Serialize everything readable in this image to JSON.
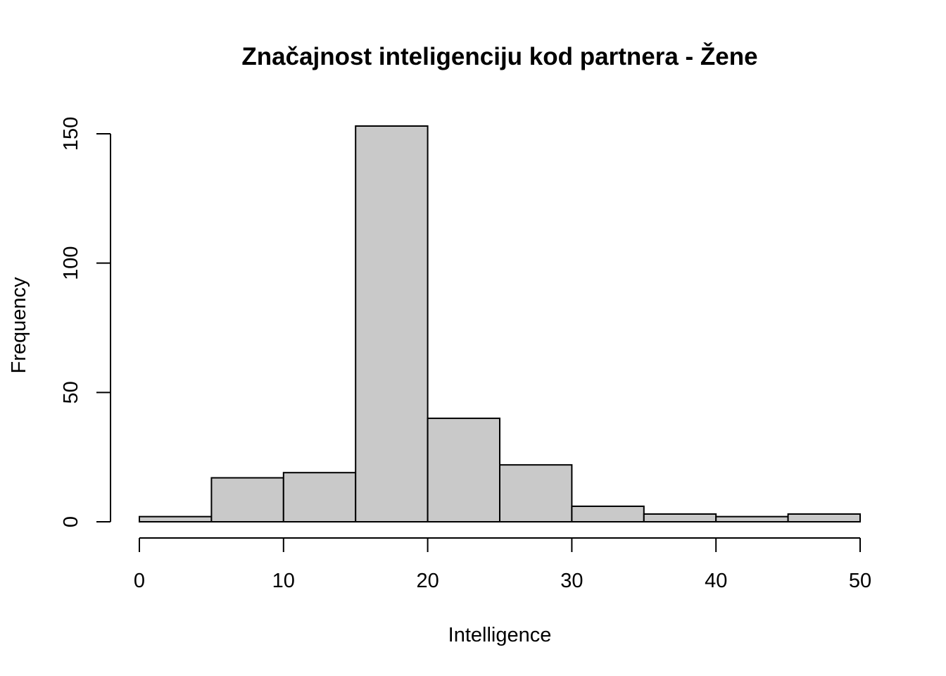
{
  "chart_data": {
    "type": "bar",
    "subtype": "histogram",
    "title": "Značajnost inteligenciju kod partnera - Žene",
    "xlabel": "Intelligence",
    "ylabel": "Frequency",
    "bins": [
      {
        "start": 0,
        "end": 5,
        "count": 2
      },
      {
        "start": 5,
        "end": 10,
        "count": 17
      },
      {
        "start": 10,
        "end": 15,
        "count": 19
      },
      {
        "start": 15,
        "end": 20,
        "count": 153
      },
      {
        "start": 20,
        "end": 25,
        "count": 40
      },
      {
        "start": 25,
        "end": 30,
        "count": 22
      },
      {
        "start": 30,
        "end": 35,
        "count": 6
      },
      {
        "start": 35,
        "end": 40,
        "count": 3
      },
      {
        "start": 40,
        "end": 45,
        "count": 2
      },
      {
        "start": 45,
        "end": 50,
        "count": 3
      }
    ],
    "xlim": [
      0,
      50
    ],
    "ylim": [
      0,
      150
    ],
    "xticks": [
      0,
      10,
      20,
      30,
      40,
      50
    ],
    "yticks": [
      0,
      50,
      100,
      150
    ],
    "bar_color": "#c9c9c9",
    "edge_color": "#000000",
    "grid": false
  }
}
